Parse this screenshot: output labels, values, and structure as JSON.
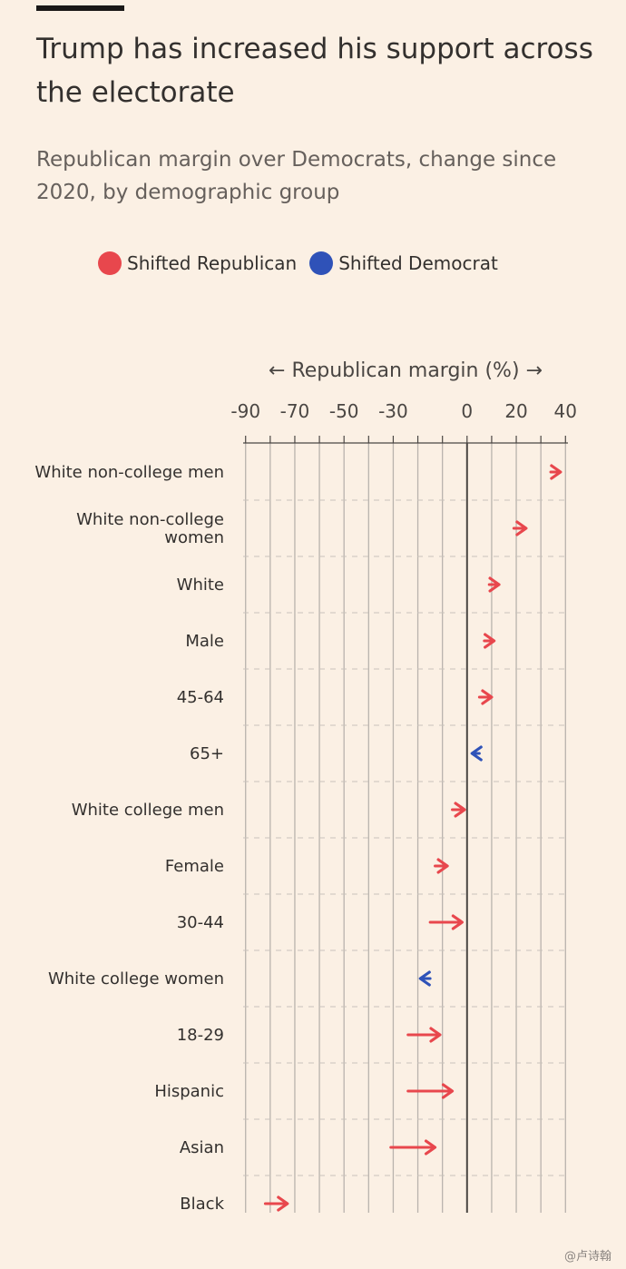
{
  "title": "Trump has increased his support across the electorate",
  "subtitle": "Republican margin over Democrats, change since 2020, by demographic group",
  "legend": [
    {
      "label": "Shifted Republican",
      "color": "#e8474d"
    },
    {
      "label": "Shifted Democrat",
      "color": "#2f52b8"
    }
  ],
  "watermark": "@卢诗翰",
  "chart_data": {
    "type": "arrow",
    "xlabel": "← Republican margin (%) →",
    "xlim": [
      -91,
      41
    ],
    "ticks": [
      -90,
      -70,
      -50,
      -30,
      0,
      20,
      40
    ],
    "grid": true,
    "colors": {
      "republican": "#e8474d",
      "democrat": "#2f52b8",
      "axis": "#4a4643",
      "grid": "#b9b3ad"
    },
    "rows": [
      {
        "label": "White non-college men",
        "from": 34,
        "to": 38,
        "shift": "republican"
      },
      {
        "label": "White non-college\nwomen",
        "from": 19,
        "to": 24,
        "shift": "republican"
      },
      {
        "label": "White",
        "from": 9,
        "to": 13,
        "shift": "republican"
      },
      {
        "label": "Male",
        "from": 7,
        "to": 11,
        "shift": "republican"
      },
      {
        "label": "45-64",
        "from": 5,
        "to": 10,
        "shift": "republican"
      },
      {
        "label": "65+",
        "from": 5,
        "to": 2,
        "shift": "democrat"
      },
      {
        "label": "White college men",
        "from": -6,
        "to": -1,
        "shift": "republican"
      },
      {
        "label": "Female",
        "from": -13,
        "to": -8,
        "shift": "republican"
      },
      {
        "label": "30-44",
        "from": -15,
        "to": -2,
        "shift": "republican"
      },
      {
        "label": "White college women",
        "from": -15,
        "to": -19,
        "shift": "democrat"
      },
      {
        "label": "18-29",
        "from": -24,
        "to": -11,
        "shift": "republican"
      },
      {
        "label": "Hispanic",
        "from": -24,
        "to": -6,
        "shift": "republican"
      },
      {
        "label": "Asian",
        "from": -31,
        "to": -13,
        "shift": "republican"
      },
      {
        "label": "Black",
        "from": -82,
        "to": -73,
        "shift": "republican"
      }
    ]
  }
}
